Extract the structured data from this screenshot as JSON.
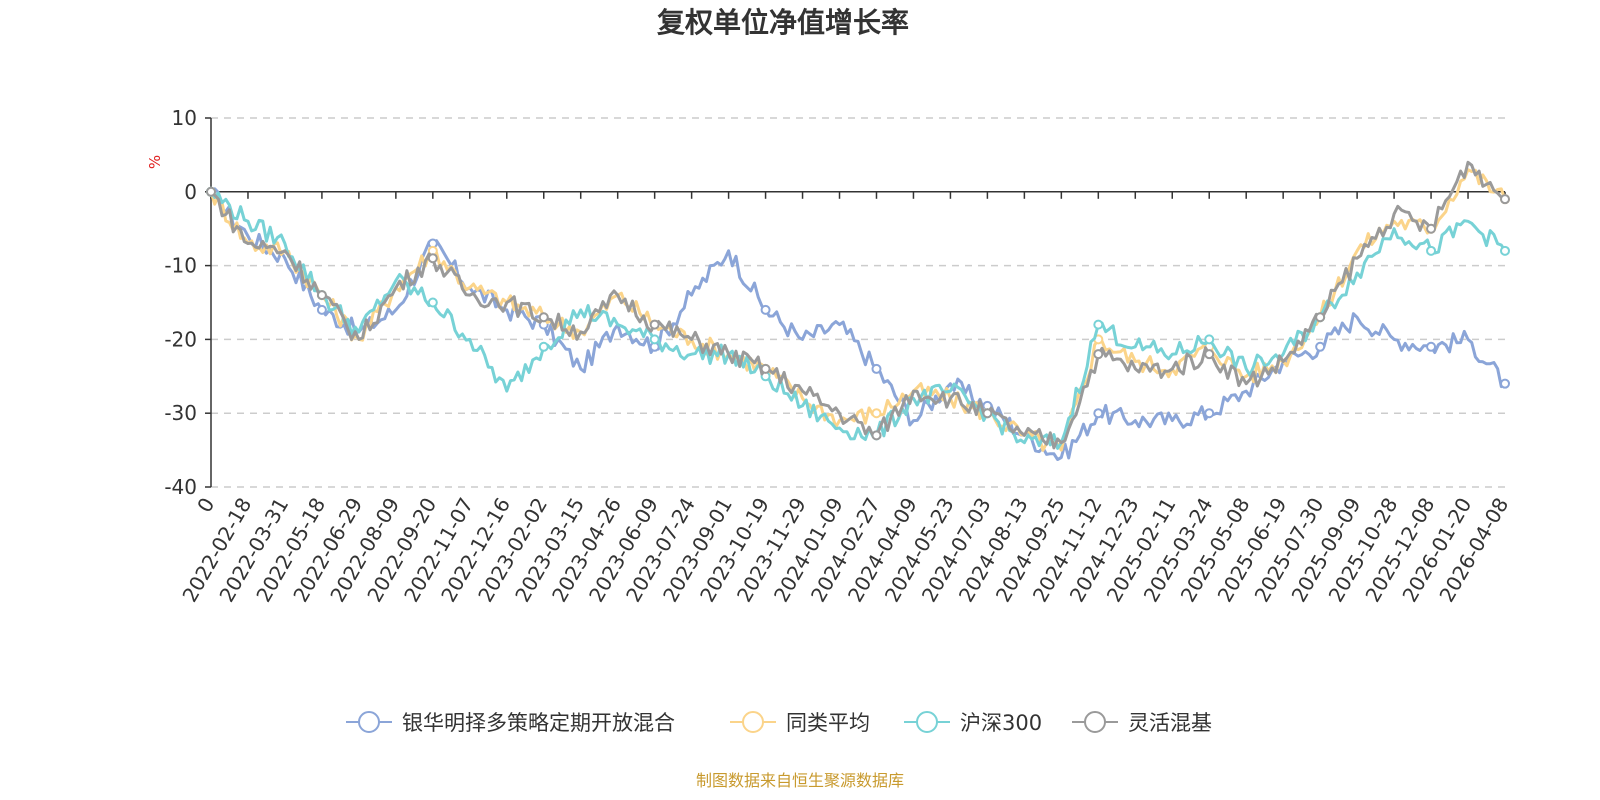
{
  "chart_data": {
    "type": "line",
    "title": "复权单位净值增长率",
    "ylabel": "%",
    "ylim": [
      -40,
      10
    ],
    "yticks": [
      "10",
      "0",
      "-10",
      "-20",
      "-30",
      "-40"
    ],
    "ytick_values": [
      10,
      0,
      -10,
      -20,
      -30,
      -40
    ],
    "categories": [
      "0",
      "2022-02-18",
      "2022-03-31",
      "2022-05-18",
      "2022-06-29",
      "2022-08-09",
      "2022-09-20",
      "2022-11-07",
      "2022-12-16",
      "2023-02-02",
      "2023-03-15",
      "2023-04-26",
      "2023-06-09",
      "2023-07-24",
      "2023-09-01",
      "2023-10-19",
      "2023-11-29",
      "2024-01-09",
      "2024-02-27",
      "2024-04-09",
      "2024-05-23",
      "2024-07-03",
      "2024-08-13",
      "2024-09-25",
      "2024-11-12",
      "2024-12-23",
      "2025-02-11",
      "2025-03-24",
      "2025-05-08",
      "2025-06-19",
      "2025-07-30",
      "2025-09-09",
      "2025-10-28",
      "2025-12-08",
      "2026-01-20",
      "2026-04-08"
    ],
    "series": [
      {
        "name": "银华明择多策略定期开放混合",
        "color": "#8ba5d8",
        "values": [
          0,
          -6,
          -9,
          -16,
          -19,
          -16,
          -7,
          -13,
          -16,
          -18,
          -24,
          -18,
          -21,
          -14,
          -8,
          -16,
          -20,
          -18,
          -24,
          -31,
          -26,
          -29,
          -33,
          -36,
          -30,
          -31,
          -31,
          -30,
          -27,
          -23,
          -21,
          -17,
          -20,
          -21,
          -20,
          -26
        ]
      },
      {
        "name": "同类平均",
        "color": "#fbd48a",
        "values": [
          0,
          -7,
          -8,
          -14,
          -20,
          -13,
          -8,
          -13,
          -15,
          -17,
          -19,
          -14,
          -18,
          -20,
          -22,
          -24,
          -28,
          -31,
          -30,
          -27,
          -28,
          -30,
          -33,
          -35,
          -20,
          -23,
          -24,
          -21,
          -25,
          -23,
          -17,
          -8,
          -4,
          -5,
          3,
          -1
        ]
      },
      {
        "name": "沪深300",
        "color": "#77d2d6",
        "values": [
          0,
          -4,
          -7,
          -14,
          -19,
          -12,
          -15,
          -20,
          -27,
          -21,
          -16,
          -18,
          -20,
          -22,
          -22,
          -25,
          -29,
          -32,
          -33,
          -28,
          -27,
          -30,
          -34,
          -34,
          -18,
          -21,
          -22,
          -20,
          -24,
          -22,
          -17,
          -11,
          -5,
          -8,
          -4,
          -8
        ]
      },
      {
        "name": "灵活混基",
        "color": "#9a9a9a",
        "values": [
          0,
          -7,
          -8,
          -14,
          -20,
          -13,
          -9,
          -14,
          -15,
          -17,
          -19,
          -14,
          -18,
          -20,
          -22,
          -24,
          -27,
          -30,
          -33,
          -27,
          -28,
          -30,
          -33,
          -34,
          -22,
          -24,
          -24,
          -22,
          -26,
          -23,
          -17,
          -9,
          -3,
          -5,
          4,
          -1
        ]
      }
    ]
  },
  "source_note": "制图数据来自恒生聚源数据库"
}
